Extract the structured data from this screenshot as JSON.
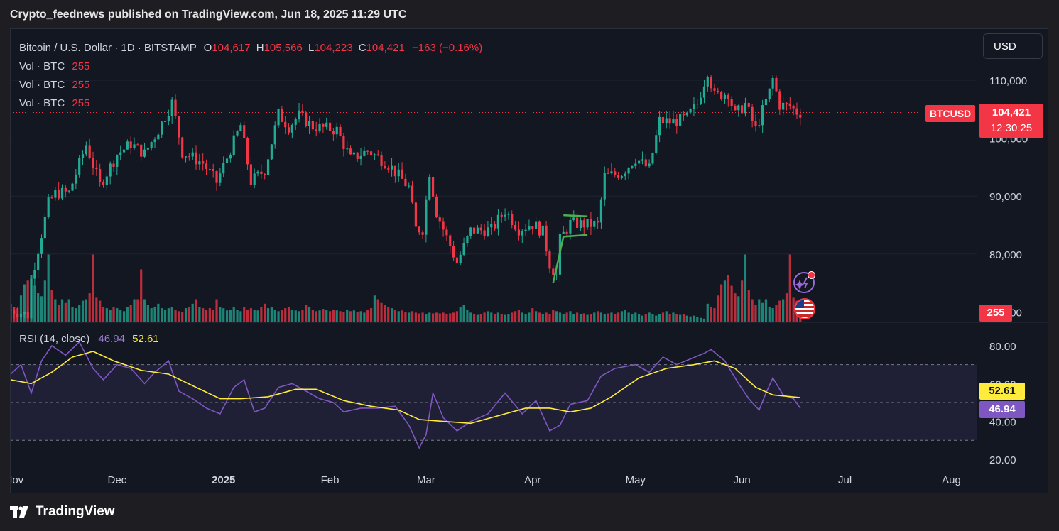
{
  "header": {
    "published": "Crypto_feednews published on TradingView.com, Jun 18, 2025 11:29 UTC"
  },
  "legend": {
    "symbol": "Bitcoin / U.S. Dollar · 1D · BITSTAMP",
    "o_label": "O",
    "o_val": "104,617",
    "h_label": "H",
    "h_val": "105,566",
    "l_label": "L",
    "l_val": "104,223",
    "c_label": "C",
    "c_val": "104,421",
    "change": "−163 (−0.16%)",
    "vol_rows": [
      {
        "label": "Vol · BTC",
        "value": "255"
      },
      {
        "label": "Vol · BTC",
        "value": "255"
      },
      {
        "label": "Vol · BTC",
        "value": "255"
      }
    ]
  },
  "toolbar": {
    "currency": "USD"
  },
  "price_tags": {
    "symbol": "BTCUSD",
    "last": "104,421",
    "countdown": "12:30:25",
    "volume": "255"
  },
  "rsi": {
    "title": "RSI (14, close)",
    "value": "46.94",
    "ma_value": "52.61"
  },
  "footer": {
    "brand": "TradingView"
  },
  "colors": {
    "up": "#22ab94",
    "down": "#f23645",
    "rsi_line": "#7e57c2",
    "rsi_ma": "#ffeb3b",
    "pattern": "#4caf50",
    "background": "#131722"
  },
  "chart_data": [
    {
      "type": "candlestick",
      "title": "Bitcoin / U.S. Dollar · 1D · BITSTAMP",
      "y_ticks": [
        "110,000",
        "100,000",
        "90,000",
        "80,000",
        "70,000"
      ],
      "ylim": [
        67000,
        113500
      ],
      "x_ticks": [
        "Nov",
        "Dec",
        "2025",
        "Feb",
        "Mar",
        "Apr",
        "May",
        "Jun",
        "Jul",
        "Aug"
      ],
      "x_range": [
        "2024-10-31",
        "2025-08-10"
      ],
      "last_price": 104421,
      "close_path": [
        [
          "2024-10-31",
          70300
        ],
        [
          "2024-11-05",
          69500
        ],
        [
          "2024-11-06",
          75600
        ],
        [
          "2024-11-11",
          88700
        ],
        [
          "2024-11-13",
          90500
        ],
        [
          "2024-11-17",
          90600
        ],
        [
          "2024-11-22",
          98900
        ],
        [
          "2024-11-26",
          91900
        ],
        [
          "2024-12-01",
          97200
        ],
        [
          "2024-12-05",
          99000
        ],
        [
          "2024-12-09",
          97300
        ],
        [
          "2024-12-13",
          101400
        ],
        [
          "2024-12-17",
          106100
        ],
        [
          "2024-12-20",
          97600
        ],
        [
          "2024-12-26",
          95700
        ],
        [
          "2024-12-30",
          92400
        ],
        [
          "2025-01-03",
          98000
        ],
        [
          "2025-01-06",
          102200
        ],
        [
          "2025-01-09",
          92500
        ],
        [
          "2025-01-13",
          94500
        ],
        [
          "2025-01-17",
          104100
        ],
        [
          "2025-01-20",
          102000
        ],
        [
          "2025-01-23",
          103900
        ],
        [
          "2025-01-27",
          102000
        ],
        [
          "2025-02-03",
          101400
        ],
        [
          "2025-02-07",
          96400
        ],
        [
          "2025-02-12",
          97800
        ],
        [
          "2025-02-18",
          95500
        ],
        [
          "2025-02-24",
          91500
        ],
        [
          "2025-02-26",
          84300
        ],
        [
          "2025-02-28",
          84300
        ],
        [
          "2025-03-02",
          94200
        ],
        [
          "2025-03-04",
          87200
        ],
        [
          "2025-03-10",
          78500
        ],
        [
          "2025-03-14",
          84000
        ],
        [
          "2025-03-20",
          84200
        ],
        [
          "2025-03-24",
          87500
        ],
        [
          "2025-03-28",
          84300
        ],
        [
          "2025-04-01",
          85200
        ],
        [
          "2025-04-04",
          83800
        ],
        [
          "2025-04-06",
          78300
        ],
        [
          "2025-04-08",
          76300
        ],
        [
          "2025-04-09",
          82500
        ],
        [
          "2025-04-12",
          85300
        ],
        [
          "2025-04-20",
          85000
        ],
        [
          "2025-04-22",
          93400
        ],
        [
          "2025-04-27",
          94000
        ],
        [
          "2025-05-01",
          96500
        ],
        [
          "2025-05-05",
          94700
        ],
        [
          "2025-05-08",
          103000
        ],
        [
          "2025-05-12",
          102800
        ],
        [
          "2025-05-16",
          103500
        ],
        [
          "2025-05-19",
          106000
        ],
        [
          "2025-05-22",
          111600
        ],
        [
          "2025-05-24",
          107300
        ],
        [
          "2025-05-28",
          107800
        ],
        [
          "2025-05-30",
          104000
        ],
        [
          "2025-06-02",
          105900
        ],
        [
          "2025-06-05",
          101500
        ],
        [
          "2025-06-09",
          108000
        ],
        [
          "2025-06-10",
          110200
        ],
        [
          "2025-06-12",
          105700
        ],
        [
          "2025-06-15",
          105500
        ],
        [
          "2025-06-17",
          104500
        ],
        [
          "2025-06-18",
          104421
        ]
      ],
      "annotation": {
        "type": "bull-flag",
        "points": [
          [
            "2025-04-07",
            75000
          ],
          [
            "2025-04-10",
            83000
          ],
          [
            "2025-04-17",
            83300
          ]
        ],
        "upper": [
          [
            "2025-04-10",
            86700
          ],
          [
            "2025-04-17",
            86500
          ]
        ]
      },
      "volume": {
        "label": "Vol · BTC",
        "last": 255,
        "relative_levels": [
          0.24,
          0.2,
          0.18,
          0.35,
          0.5,
          0.55,
          0.62,
          0.48,
          0.38,
          0.34,
          0.55,
          0.9,
          0.42,
          0.3,
          0.22,
          0.3,
          0.25,
          0.3,
          0.2,
          0.18,
          0.22,
          0.28,
          0.3,
          0.38,
          0.9,
          0.32,
          0.28,
          0.2,
          0.18,
          0.16,
          0.2,
          0.18,
          0.16,
          0.14,
          0.2,
          0.22,
          0.3,
          0.3,
          0.7,
          0.3,
          0.22,
          0.18,
          0.2,
          0.24,
          0.18,
          0.16,
          0.18,
          0.2,
          0.16,
          0.14,
          0.13,
          0.18,
          0.2,
          0.24,
          0.3,
          0.2,
          0.18,
          0.16,
          0.18,
          0.16,
          0.3,
          0.2,
          0.18,
          0.15,
          0.16,
          0.2,
          0.16,
          0.14,
          0.2,
          0.16,
          0.18,
          0.16,
          0.15,
          0.2,
          0.24,
          0.18,
          0.2,
          0.16,
          0.14,
          0.16,
          0.18,
          0.2,
          0.16,
          0.15,
          0.14,
          0.16,
          0.22,
          0.2,
          0.16,
          0.14,
          0.15,
          0.17,
          0.16,
          0.14,
          0.16,
          0.15,
          0.14,
          0.13,
          0.16,
          0.14,
          0.15,
          0.13,
          0.14,
          0.12,
          0.16,
          0.18,
          0.35,
          0.3,
          0.25,
          0.22,
          0.2,
          0.18,
          0.16,
          0.14,
          0.15,
          0.13,
          0.12,
          0.14,
          0.12,
          0.11,
          0.12,
          0.1,
          0.12,
          0.11,
          0.12,
          0.11,
          0.12,
          0.1,
          0.11,
          0.12,
          0.14,
          0.2,
          0.22,
          0.16,
          0.12,
          0.1,
          0.09,
          0.1,
          0.12,
          0.14,
          0.12,
          0.1,
          0.12,
          0.1,
          0.09,
          0.1,
          0.12,
          0.14,
          0.16,
          0.12,
          0.1,
          0.12,
          0.18,
          0.14,
          0.12,
          0.1,
          0.12,
          0.1,
          0.16,
          0.14,
          0.12,
          0.1,
          0.12,
          0.14,
          0.1,
          0.12,
          0.1,
          0.11,
          0.09,
          0.1,
          0.12,
          0.14,
          0.12,
          0.1,
          0.11,
          0.12,
          0.1,
          0.12,
          0.14,
          0.16,
          0.12,
          0.1,
          0.12,
          0.1,
          0.08,
          0.1,
          0.12,
          0.1,
          0.08,
          0.1,
          0.12,
          0.14,
          0.1,
          0.12,
          0.1,
          0.09,
          0.1,
          0.08,
          0.07,
          0.08,
          0.06,
          0.05,
          0.04
        ]
      }
    },
    {
      "type": "line",
      "title": "RSI (14, close)",
      "ylim": [
        20,
        85
      ],
      "y_ticks": [
        "80.00",
        "60.00",
        "40.00",
        "20.00"
      ],
      "bands": [
        30,
        50,
        70
      ],
      "series": [
        {
          "name": "RSI",
          "points": [
            [
              "2024-10-31",
              65
            ],
            [
              "2024-11-03",
              70
            ],
            [
              "2024-11-06",
              55
            ],
            [
              "2024-11-09",
              72
            ],
            [
              "2024-11-12",
              80
            ],
            [
              "2024-11-16",
              75
            ],
            [
              "2024-11-20",
              82
            ],
            [
              "2024-11-24",
              68
            ],
            [
              "2024-11-27",
              62
            ],
            [
              "2024-12-01",
              70
            ],
            [
              "2024-12-05",
              68
            ],
            [
              "2024-12-09",
              60
            ],
            [
              "2024-12-12",
              66
            ],
            [
              "2024-12-16",
              72
            ],
            [
              "2024-12-19",
              56
            ],
            [
              "2024-12-23",
              52
            ],
            [
              "2024-12-27",
              47
            ],
            [
              "2024-12-31",
              44
            ],
            [
              "2025-01-04",
              58
            ],
            [
              "2025-01-07",
              62
            ],
            [
              "2025-01-10",
              45
            ],
            [
              "2025-01-13",
              47
            ],
            [
              "2025-01-17",
              58
            ],
            [
              "2025-01-21",
              60
            ],
            [
              "2025-01-25",
              56
            ],
            [
              "2025-01-29",
              52
            ],
            [
              "2025-02-02",
              50
            ],
            [
              "2025-02-05",
              45
            ],
            [
              "2025-02-10",
              47
            ],
            [
              "2025-02-15",
              47
            ],
            [
              "2025-02-20",
              48
            ],
            [
              "2025-02-24",
              38
            ],
            [
              "2025-02-27",
              26
            ],
            [
              "2025-03-01",
              33
            ],
            [
              "2025-03-03",
              55
            ],
            [
              "2025-03-06",
              42
            ],
            [
              "2025-03-10",
              35
            ],
            [
              "2025-03-14",
              40
            ],
            [
              "2025-03-19",
              44
            ],
            [
              "2025-03-24",
              55
            ],
            [
              "2025-03-29",
              44
            ],
            [
              "2025-04-02",
              51
            ],
            [
              "2025-04-06",
              35
            ],
            [
              "2025-04-09",
              38
            ],
            [
              "2025-04-12",
              49
            ],
            [
              "2025-04-17",
              51
            ],
            [
              "2025-04-21",
              64
            ],
            [
              "2025-04-25",
              68
            ],
            [
              "2025-05-01",
              70
            ],
            [
              "2025-05-05",
              66
            ],
            [
              "2025-05-09",
              74
            ],
            [
              "2025-05-13",
              70
            ],
            [
              "2025-05-17",
              73
            ],
            [
              "2025-05-21",
              76
            ],
            [
              "2025-05-23",
              78
            ],
            [
              "2025-05-27",
              72
            ],
            [
              "2025-05-31",
              60
            ],
            [
              "2025-06-03",
              52
            ],
            [
              "2025-06-06",
              46
            ],
            [
              "2025-06-08",
              55
            ],
            [
              "2025-06-10",
              63
            ],
            [
              "2025-06-13",
              54
            ],
            [
              "2025-06-16",
              52
            ],
            [
              "2025-06-18",
              47
            ]
          ]
        },
        {
          "name": "RSI-based MA",
          "points": [
            [
              "2024-10-31",
              62
            ],
            [
              "2024-11-06",
              60
            ],
            [
              "2024-11-12",
              66
            ],
            [
              "2024-11-18",
              74
            ],
            [
              "2024-11-24",
              77
            ],
            [
              "2024-11-30",
              72
            ],
            [
              "2024-12-08",
              67
            ],
            [
              "2024-12-16",
              65
            ],
            [
              "2024-12-24",
              58
            ],
            [
              "2024-12-31",
              52
            ],
            [
              "2025-01-06",
              52
            ],
            [
              "2025-01-14",
              53
            ],
            [
              "2025-01-22",
              57
            ],
            [
              "2025-01-28",
              57
            ],
            [
              "2025-02-05",
              51
            ],
            [
              "2025-02-13",
              48
            ],
            [
              "2025-02-21",
              46
            ],
            [
              "2025-02-27",
              41
            ],
            [
              "2025-03-06",
              40
            ],
            [
              "2025-03-14",
              39
            ],
            [
              "2025-03-22",
              43
            ],
            [
              "2025-03-30",
              47
            ],
            [
              "2025-04-06",
              47
            ],
            [
              "2025-04-12",
              45
            ],
            [
              "2025-04-18",
              47
            ],
            [
              "2025-04-24",
              53
            ],
            [
              "2025-05-02",
              63
            ],
            [
              "2025-05-10",
              68
            ],
            [
              "2025-05-18",
              70
            ],
            [
              "2025-05-24",
              72
            ],
            [
              "2025-05-30",
              68
            ],
            [
              "2025-06-05",
              58
            ],
            [
              "2025-06-10",
              54
            ],
            [
              "2025-06-18",
              52.6
            ]
          ]
        }
      ]
    }
  ]
}
